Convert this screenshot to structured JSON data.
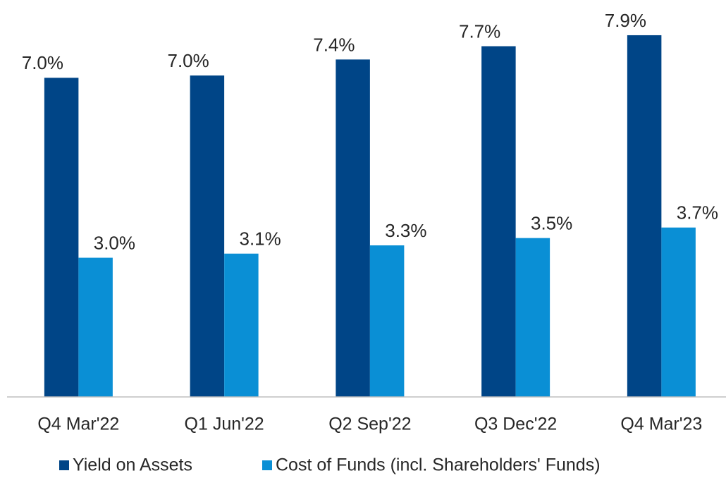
{
  "chart_data": {
    "type": "bar",
    "categories": [
      "Q4 Mar'22",
      "Q1 Jun'22",
      "Q2 Sep'22",
      "Q3 Dec'22",
      "Q4 Mar'23"
    ],
    "series": [
      {
        "name": "Yield on Assets",
        "color": "#004587",
        "values": [
          6.97,
          7.02,
          7.37,
          7.66,
          7.9
        ],
        "value_labels": [
          "7.0%",
          "7.0%",
          "7.4%",
          "7.7%",
          "7.9%"
        ]
      },
      {
        "name": "Cost of Funds (incl. Shareholders' Funds)",
        "color": "#0a8fd5",
        "values": [
          3.04,
          3.13,
          3.31,
          3.47,
          3.7
        ],
        "value_labels": [
          "3.0%",
          "3.1%",
          "3.3%",
          "3.5%",
          "3.7%"
        ]
      }
    ],
    "ylim": [
      0,
      8.5
    ],
    "legend": "bottom"
  }
}
